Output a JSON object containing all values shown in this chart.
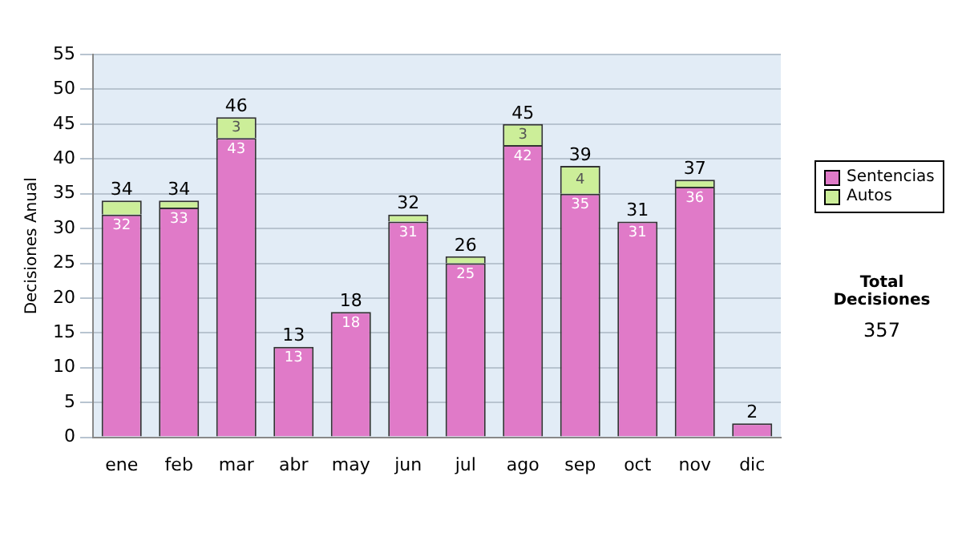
{
  "chart_data": {
    "type": "bar",
    "stacked": true,
    "ylabel": "Decisiones Anual",
    "categories": [
      "ene",
      "feb",
      "mar",
      "abr",
      "may",
      "jun",
      "jul",
      "ago",
      "sep",
      "oct",
      "nov",
      "dic"
    ],
    "series": [
      {
        "name": "Sentencias",
        "color": "#e07ac8",
        "values": [
          32,
          33,
          43,
          13,
          18,
          31,
          25,
          42,
          35,
          31,
          36,
          2
        ],
        "value_labels": [
          "32",
          "33",
          "43",
          "13",
          "18",
          "31",
          "25",
          "42",
          "35",
          "31",
          "36",
          null
        ]
      },
      {
        "name": "Autos",
        "color": "#ccee99",
        "values": [
          2,
          1,
          3,
          0,
          0,
          1,
          1,
          3,
          4,
          0,
          1,
          0
        ],
        "value_labels": [
          null,
          null,
          "3",
          null,
          null,
          null,
          null,
          "3",
          "4",
          null,
          null,
          null
        ]
      }
    ],
    "totals": [
      "34",
      "34",
      "46",
      "13",
      "18",
      "32",
      "26",
      "45",
      "39",
      "31",
      "37",
      "2"
    ],
    "ylim": [
      0,
      55
    ],
    "yticks": [
      0,
      5,
      10,
      15,
      20,
      25,
      30,
      35,
      40,
      45,
      50,
      55
    ],
    "grid": "y",
    "legend": "right",
    "annotations": [
      "Total Decisiones",
      "357"
    ]
  }
}
